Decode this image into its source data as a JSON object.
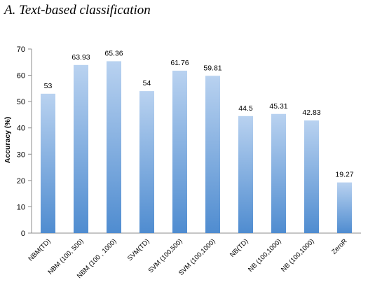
{
  "heading": "A.  Text-based classification",
  "chart_data": {
    "type": "bar",
    "title": "",
    "xlabel": "",
    "ylabel": "Accuracy (%)",
    "ylim": [
      0,
      70
    ],
    "yticks": [
      0,
      10,
      20,
      30,
      40,
      50,
      60,
      70
    ],
    "grid": false,
    "legend": "none",
    "categories": [
      "NBM(TD)",
      "NBM (100, 500)",
      "NBM (100 , 1000)",
      "SVM(TD)",
      "SVM (100,500)",
      "SVM (100,1000)",
      "NB(TD)",
      "NB (100,1000)",
      "NB (100,1000)",
      "ZeroR"
    ],
    "values": [
      53,
      63.93,
      65.36,
      54,
      61.76,
      59.81,
      44.5,
      45.31,
      42.83,
      19.27
    ],
    "value_labels": [
      "53",
      "63.93",
      "65.36",
      "54",
      "61.76",
      "59.81",
      "44.5",
      "45.31",
      "42.83",
      "19.27"
    ],
    "colors": {
      "bar_top": "#b9d2f0",
      "bar_bottom": "#4f8cd0",
      "axis": "#8c8c8c"
    }
  }
}
